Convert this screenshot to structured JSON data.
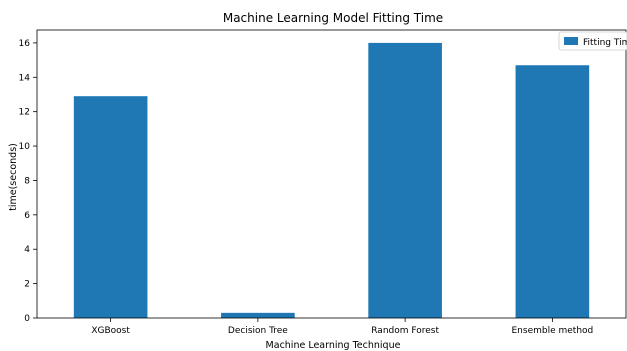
{
  "chart_data": {
    "type": "bar",
    "title": "Machine Learning Model Fitting Time",
    "xlabel": "Machine Learning Technique",
    "ylabel": "time(seconds)",
    "categories": [
      "XGBoost",
      "Decision Tree",
      "Random Forest",
      "Ensemble method"
    ],
    "series": [
      {
        "name": "Fitting Time",
        "values": [
          12.9,
          0.3,
          16.0,
          14.7
        ]
      }
    ],
    "ylim": [
      0,
      16.75
    ],
    "yticks": [
      0,
      2,
      4,
      6,
      8,
      10,
      12,
      14,
      16
    ],
    "grid": false,
    "legend": "top-right",
    "bar_color": "#1f77b4"
  }
}
